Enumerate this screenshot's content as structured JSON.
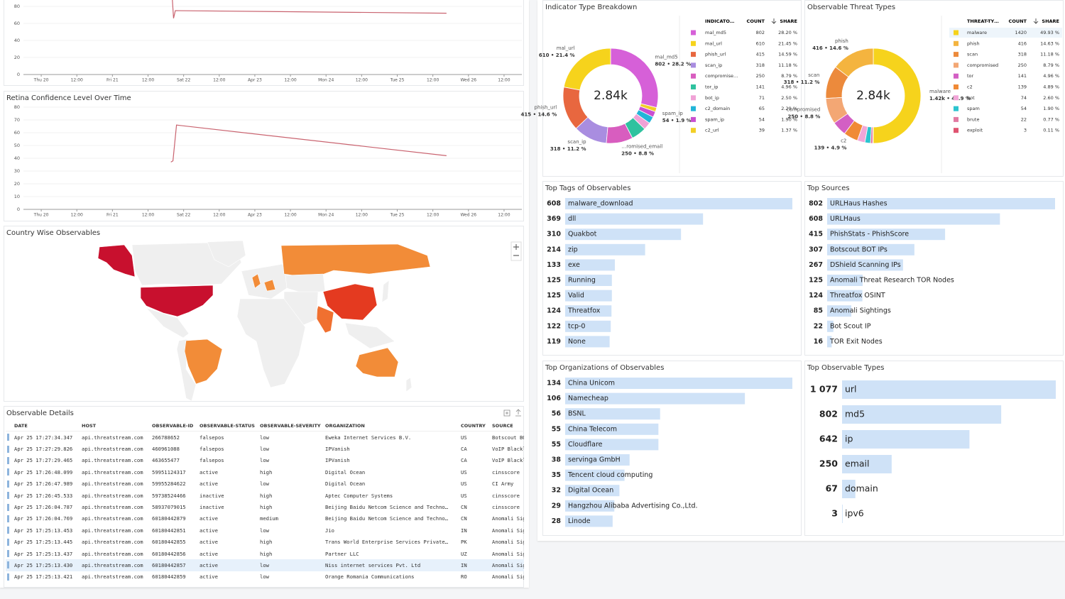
{
  "top_chart": {
    "type": "line",
    "ylim": [
      0,
      80
    ],
    "yticks": [
      0,
      20,
      40,
      60,
      80
    ],
    "xlim": [
      -6,
      162
    ],
    "grid": true,
    "xticks": [
      {
        "value": 0,
        "label": "Thu 20"
      },
      {
        "value": 12,
        "label": "12:00"
      },
      {
        "value": 24,
        "label": "Fri 21"
      },
      {
        "value": 36,
        "label": "12:00"
      },
      {
        "value": 48,
        "label": "Sat 22"
      },
      {
        "value": 60,
        "label": "12:00"
      },
      {
        "value": 72,
        "label": "Apr 23"
      },
      {
        "value": 84,
        "label": "12:00"
      },
      {
        "value": 96,
        "label": "Mon 24"
      },
      {
        "value": 108,
        "label": "12:00"
      },
      {
        "value": 120,
        "label": "Tue 25"
      },
      {
        "value": 132,
        "label": "12:00"
      },
      {
        "value": 144,
        "label": "Wed 26"
      },
      {
        "value": 156,
        "label": "12:00"
      }
    ],
    "series": [
      {
        "color": "#c9636f",
        "x": [
          44.2,
          44.6,
          45.2,
          136.6
        ],
        "values": [
          88,
          66,
          75,
          72
        ]
      }
    ]
  },
  "retina": {
    "type": "line",
    "title": "Retina Confidence Level Over Time",
    "ylim": [
      0,
      80
    ],
    "yticks": [
      0,
      10,
      20,
      30,
      40,
      50,
      60,
      70,
      80
    ],
    "xlim": [
      -6,
      162
    ],
    "grid": true,
    "xticks": [
      {
        "value": 0,
        "label": "Thu 20"
      },
      {
        "value": 12,
        "label": "12:00"
      },
      {
        "value": 24,
        "label": "Fri 21"
      },
      {
        "value": 36,
        "label": "12:00"
      },
      {
        "value": 48,
        "label": "Sat 22"
      },
      {
        "value": 60,
        "label": "12:00"
      },
      {
        "value": 72,
        "label": "Apr 23"
      },
      {
        "value": 84,
        "label": "12:00"
      },
      {
        "value": 96,
        "label": "Mon 24"
      },
      {
        "value": 108,
        "label": "12:00"
      },
      {
        "value": 120,
        "label": "Tue 25"
      },
      {
        "value": 132,
        "label": "12:00"
      },
      {
        "value": 144,
        "label": "Wed 26"
      },
      {
        "value": 156,
        "label": "12:00"
      }
    ],
    "series": [
      {
        "color": "#c9636f",
        "x": [
          43.7,
          44.4,
          45.6,
          136.6
        ],
        "values": [
          37,
          38,
          66,
          42
        ]
      }
    ]
  },
  "map": {
    "title": "Country Wise Observables"
  },
  "details": {
    "title": "Observable Details",
    "columns": [
      "DATE",
      "HOST",
      "OBSERVABLE-ID",
      "OBSERVABLE-STATUS",
      "OBSERVABLE-SEVERITY",
      "ORGANIZATION",
      "COUNTRY",
      "SOURCE"
    ],
    "rows": [
      [
        "Apr 25 17:27:34.347",
        "api.threatstream.com",
        "266788652",
        "falsepos",
        "low",
        "Eweka Internet Services B.V.",
        "US",
        "Botscout BOT IPs"
      ],
      [
        "Apr 25 17:27:29.826",
        "api.threatstream.com",
        "460961088",
        "falsepos",
        "low",
        "IPVanish",
        "CA",
        "VoIP Blacklist"
      ],
      [
        "Apr 25 17:27:29.465",
        "api.threatstream.com",
        "463655477",
        "falsepos",
        "low",
        "IPVanish",
        "CA",
        "VoIP Blacklist"
      ],
      [
        "Apr 25 17:26:48.099",
        "api.threatstream.com",
        "59951124317",
        "active",
        "high",
        "Digital Ocean",
        "US",
        "cinsscore"
      ],
      [
        "Apr 25 17:26:47.989",
        "api.threatstream.com",
        "59955284622",
        "active",
        "low",
        "Digital Ocean",
        "US",
        "CI Army"
      ],
      [
        "Apr 25 17:26:45.533",
        "api.threatstream.com",
        "59738524466",
        "inactive",
        "high",
        "Aptec Computer Systems",
        "US",
        "cinsscore"
      ],
      [
        "Apr 25 17:26:04.787",
        "api.threatstream.com",
        "58937079015",
        "inactive",
        "high",
        "Beijing Baidu Netcom Science and Techno…",
        "CN",
        "cinsscore"
      ],
      [
        "Apr 25 17:26:04.769",
        "api.threatstream.com",
        "60180442879",
        "active",
        "medium",
        "Beijing Baidu Netcom Science and Techno…",
        "CN",
        "Anomali Sightings"
      ],
      [
        "Apr 25 17:25:13.453",
        "api.threatstream.com",
        "60180442851",
        "active",
        "low",
        "Jio",
        "IN",
        "Anomali Sightings"
      ],
      [
        "Apr 25 17:25:13.445",
        "api.threatstream.com",
        "60180442855",
        "active",
        "high",
        "Trans World Enterprise Services Private…",
        "PK",
        "Anomali Sightings"
      ],
      [
        "Apr 25 17:25:13.437",
        "api.threatstream.com",
        "60180442856",
        "active",
        "high",
        "Partner LLC",
        "UZ",
        "Anomali Sightings"
      ],
      [
        "Apr 25 17:25:13.430",
        "api.threatstream.com",
        "60180442857",
        "active",
        "low",
        "Niss internet services Pvt. Ltd",
        "IN",
        "Anomali Sightings"
      ],
      [
        "Apr 25 17:25:13.421",
        "api.threatstream.com",
        "60180442859",
        "active",
        "low",
        "Orange Romania Communications",
        "RO",
        "Anomali Sightings"
      ]
    ]
  },
  "indicator": {
    "type": "pie",
    "title": "Indicator Type Breakdown",
    "total_label": "2.84k",
    "header": [
      "INDICATO…",
      "COUNT",
      "SHARE"
    ],
    "categories": [
      "mal_md5",
      "mal_url",
      "phish_url",
      "scan_ip",
      "compromise…",
      "tor_ip",
      "bot_ip",
      "c2_domain",
      "spam_ip",
      "c2_url"
    ],
    "values": [
      802,
      610,
      415,
      318,
      250,
      141,
      71,
      65,
      54,
      39
    ],
    "share_labels": [
      "28.20 %",
      "21.45 %",
      "14.59 %",
      "11.18 %",
      "8.79 %",
      "4.96 %",
      "2.50 %",
      "2.29 %",
      "1.90 %",
      "1.37 %"
    ],
    "colors": [
      "#d660d8",
      "#f6d31c",
      "#e8673f",
      "#a98de0",
      "#d85dbf",
      "#2fc29f",
      "#f0a2d6",
      "#22b5d8",
      "#c94fd0",
      "#f2cf26"
    ],
    "slice_names": [
      "mal_md5",
      "mal_url",
      "phish_url",
      "scan_ip",
      "…romised_email",
      null,
      null,
      null,
      "spam_ip",
      null
    ],
    "slice_labels": [
      "802 • 28.2 %",
      "610 • 21.4 %",
      "415 • 14.6 %",
      "318 • 11.2 %",
      "250 • 8.8 %",
      null,
      null,
      null,
      "54 • 1.9 %",
      null
    ]
  },
  "threats": {
    "type": "pie",
    "title": "Observable Threat Types",
    "total_label": "2.84k",
    "header": [
      "THREAT-TY…",
      "COUNT",
      "SHARE"
    ],
    "categories": [
      "malware",
      "phish",
      "scan",
      "compromised",
      "tor",
      "c2",
      "bot",
      "spam",
      "brute",
      "exploit"
    ],
    "values": [
      1420,
      416,
      318,
      250,
      141,
      139,
      74,
      54,
      22,
      3
    ],
    "share_labels": [
      "49.93 %",
      "14.63 %",
      "11.18 %",
      "8.79 %",
      "4.96 %",
      "4.89 %",
      "2.60 %",
      "1.90 %",
      "0.77 %",
      "0.11 %"
    ],
    "colors": [
      "#f6d31c",
      "#f4b43f",
      "#ec8a3c",
      "#f3a774",
      "#d35fc4",
      "#f08a36",
      "#f2a6d8",
      "#2cc4cf",
      "#e27aa2",
      "#df5370"
    ],
    "slice_names": [
      "malware",
      "phish",
      "scan",
      "compromised",
      null,
      "c2",
      null,
      null,
      null,
      null
    ],
    "slice_labels": [
      "1.42k • 49.9 %",
      "416 • 14.6 %",
      "318 • 11.2 %",
      "250 • 8.8 %",
      null,
      "139 • 4.9 %",
      null,
      null,
      null,
      null
    ]
  },
  "tags": {
    "type": "bar",
    "title": "Top Tags of Observables",
    "color": "#cfe2f7",
    "categories": [
      "malware_download",
      "dll",
      "Quakbot",
      "zip",
      "exe",
      "Running",
      "Valid",
      "Threatfox",
      "tcp-0",
      "None"
    ],
    "values": [
      608,
      369,
      310,
      214,
      133,
      125,
      125,
      124,
      122,
      119
    ]
  },
  "sources": {
    "type": "bar",
    "title": "Top Sources",
    "color": "#cfe2f7",
    "categories": [
      "URLHaus Hashes",
      "URLHaus",
      "PhishStats - PhishScore",
      "Botscout BOT IPs",
      "DShield Scanning IPs",
      "Anomali Threat Research TOR Nodes",
      "Threatfox OSINT",
      "Anomali Sightings",
      "Bot Scout IP",
      "TOR Exit Nodes"
    ],
    "values": [
      802,
      608,
      415,
      307,
      267,
      125,
      124,
      85,
      22,
      16
    ]
  },
  "orgs": {
    "type": "bar",
    "title": "Top Organizations of Observables",
    "color": "#cfe2f7",
    "categories": [
      "China Unicom",
      "Namecheap",
      "BSNL",
      "China Telecom",
      "Cloudflare",
      "servinga GmbH",
      "Tencent cloud computing",
      "Digital Ocean",
      "Hangzhou Alibaba Advertising Co.,Ltd.",
      "Linode"
    ],
    "values": [
      134,
      106,
      56,
      55,
      55,
      38,
      35,
      32,
      29,
      28
    ]
  },
  "types": {
    "type": "bar",
    "title": "Top Observable Types",
    "color": "#cfe2f7",
    "categories": [
      "url",
      "md5",
      "ip",
      "email",
      "domain",
      "ipv6"
    ],
    "values": [
      1077,
      802,
      642,
      250,
      67,
      3
    ],
    "value_labels": [
      "1 077",
      "802",
      "642",
      "250",
      "67",
      "3"
    ]
  }
}
